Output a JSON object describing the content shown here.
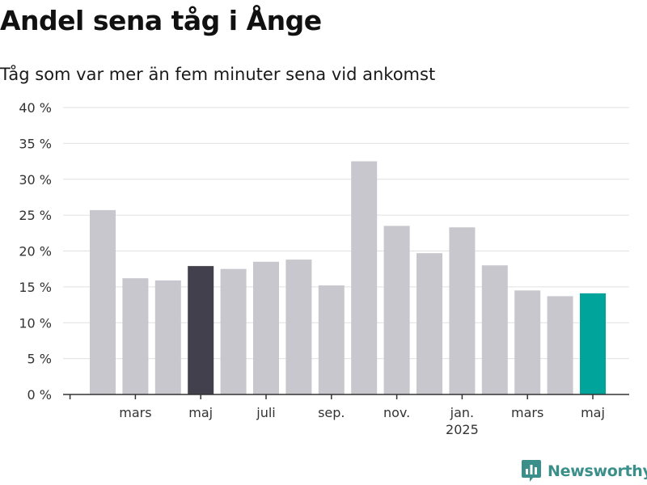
{
  "title": "Andel sena tåg i Ånge",
  "subtitle": "Tåg som var mer än fem minuter sena vid ankomst",
  "brand": "Newsworthy",
  "colors": {
    "default_bar": "#c8c7cd",
    "highlight_previous": "#42404c",
    "highlight_current": "#00a49a",
    "grid": "#e0e0e0",
    "axis": "#333333",
    "brand": "#3a8f8a"
  },
  "chart_data": {
    "type": "bar",
    "title": "Andel sena tåg i Ånge",
    "subtitle": "Tåg som var mer än fem minuter sena vid ankomst",
    "xlabel": "",
    "ylabel": "",
    "ylim": [
      0,
      40
    ],
    "yticks": [
      0,
      5,
      10,
      15,
      20,
      25,
      30,
      35,
      40
    ],
    "ytick_labels": [
      "0 %",
      "5 %",
      "10 %",
      "15 %",
      "20 %",
      "25 %",
      "30 %",
      "35 %",
      "40 %"
    ],
    "grid": true,
    "categories": [
      "2024-02",
      "2024-03",
      "2024-04",
      "2024-05",
      "2024-06",
      "2024-07",
      "2024-08",
      "2024-09",
      "2024-10",
      "2024-11",
      "2024-12",
      "2025-01",
      "2025-02",
      "2025-03",
      "2025-04",
      "2025-05"
    ],
    "values": [
      25.7,
      16.2,
      15.9,
      17.9,
      17.5,
      18.5,
      18.8,
      15.2,
      32.5,
      23.5,
      19.7,
      23.3,
      18.0,
      14.5,
      13.7,
      14.1
    ],
    "highlight": {
      "2024-05": "previous",
      "2025-05": "current"
    },
    "xtick_labels": [
      {
        "category": "2024-03",
        "label": "mars"
      },
      {
        "category": "2024-05",
        "label": "maj"
      },
      {
        "category": "2024-07",
        "label": "juli"
      },
      {
        "category": "2024-09",
        "label": "sep."
      },
      {
        "category": "2024-11",
        "label": "nov."
      },
      {
        "category": "2025-01",
        "label": "jan.",
        "sublabel": "2025"
      },
      {
        "category": "2025-03",
        "label": "mars"
      },
      {
        "category": "2025-05",
        "label": "maj"
      }
    ]
  }
}
